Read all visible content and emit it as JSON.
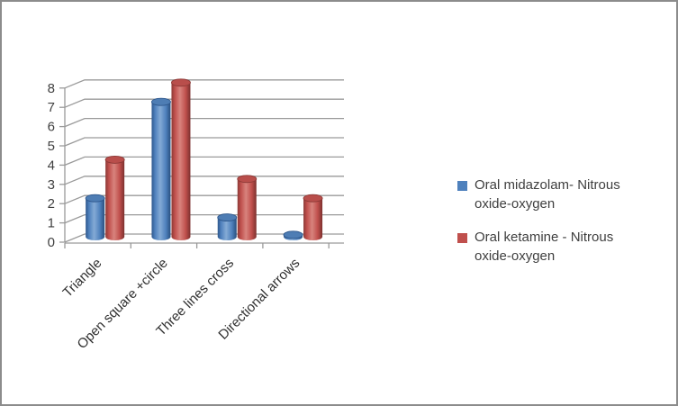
{
  "chart_data": {
    "type": "bar",
    "subtype": "3d-cylinder",
    "title": "",
    "xlabel": "",
    "ylabel": "",
    "categories": [
      "Triangle",
      "Open square +circle",
      "Three lines cross",
      "Directional arrows"
    ],
    "series": [
      {
        "name": "Oral midazolam- Nitrous oxide-oxygen",
        "color": "#4F81BD",
        "values": [
          2,
          7,
          1,
          0.1
        ]
      },
      {
        "name": "Oral ketamine - Nitrous oxide-oxygen",
        "color": "#C0504D",
        "values": [
          4,
          8,
          3,
          2
        ]
      }
    ],
    "ylim": [
      0,
      8
    ],
    "yticks": [
      0,
      1,
      2,
      3,
      4,
      5,
      6,
      7,
      8
    ],
    "grid": true,
    "legend_position": "right",
    "axis_color": "#9a9a9a",
    "tick_label_color": "#3f3f3f"
  }
}
